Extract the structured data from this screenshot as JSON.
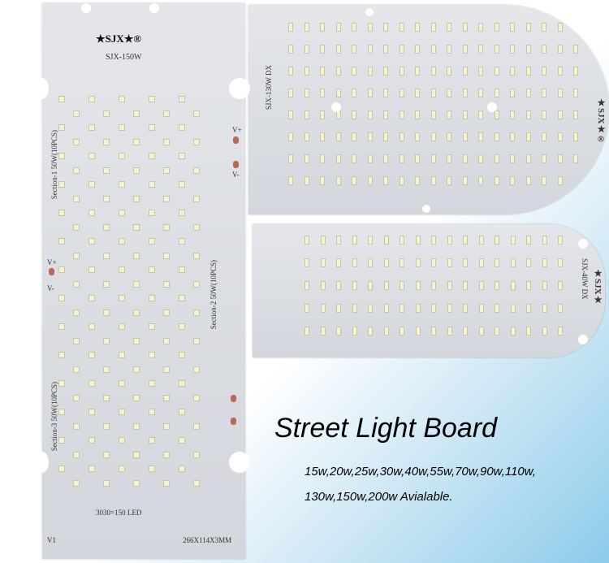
{
  "board_150w": {
    "logo": "★SJX★®",
    "model": "SJX-150W",
    "section1": "Section-1 50W(10PCS)",
    "section2": "Section-2 50W(10PCS)",
    "section3": "Section-3 50W(10PCS)",
    "led_spec": "3030=150 LED",
    "dimensions": "266X114X3MM",
    "version": "V1",
    "v_plus": "V+",
    "v_minus": "V-"
  },
  "board_130w": {
    "logo": "★SJX★®",
    "model": "SJX-130W DX"
  },
  "board_40w": {
    "logo": "★SJX★",
    "model": "SJX-40W DX"
  },
  "caption": {
    "headline": "Street Light Board",
    "wattages_line1": "15w,20w,25w,30w,40w,55w,70w,90w,110w,",
    "wattages_line2": "130w,150w,200w Avialable."
  },
  "colors": {
    "board": "#dcdfe4",
    "led": "#f4f2d6",
    "pad": "#b86a5a",
    "accent_gradient": "#8ccbea"
  }
}
